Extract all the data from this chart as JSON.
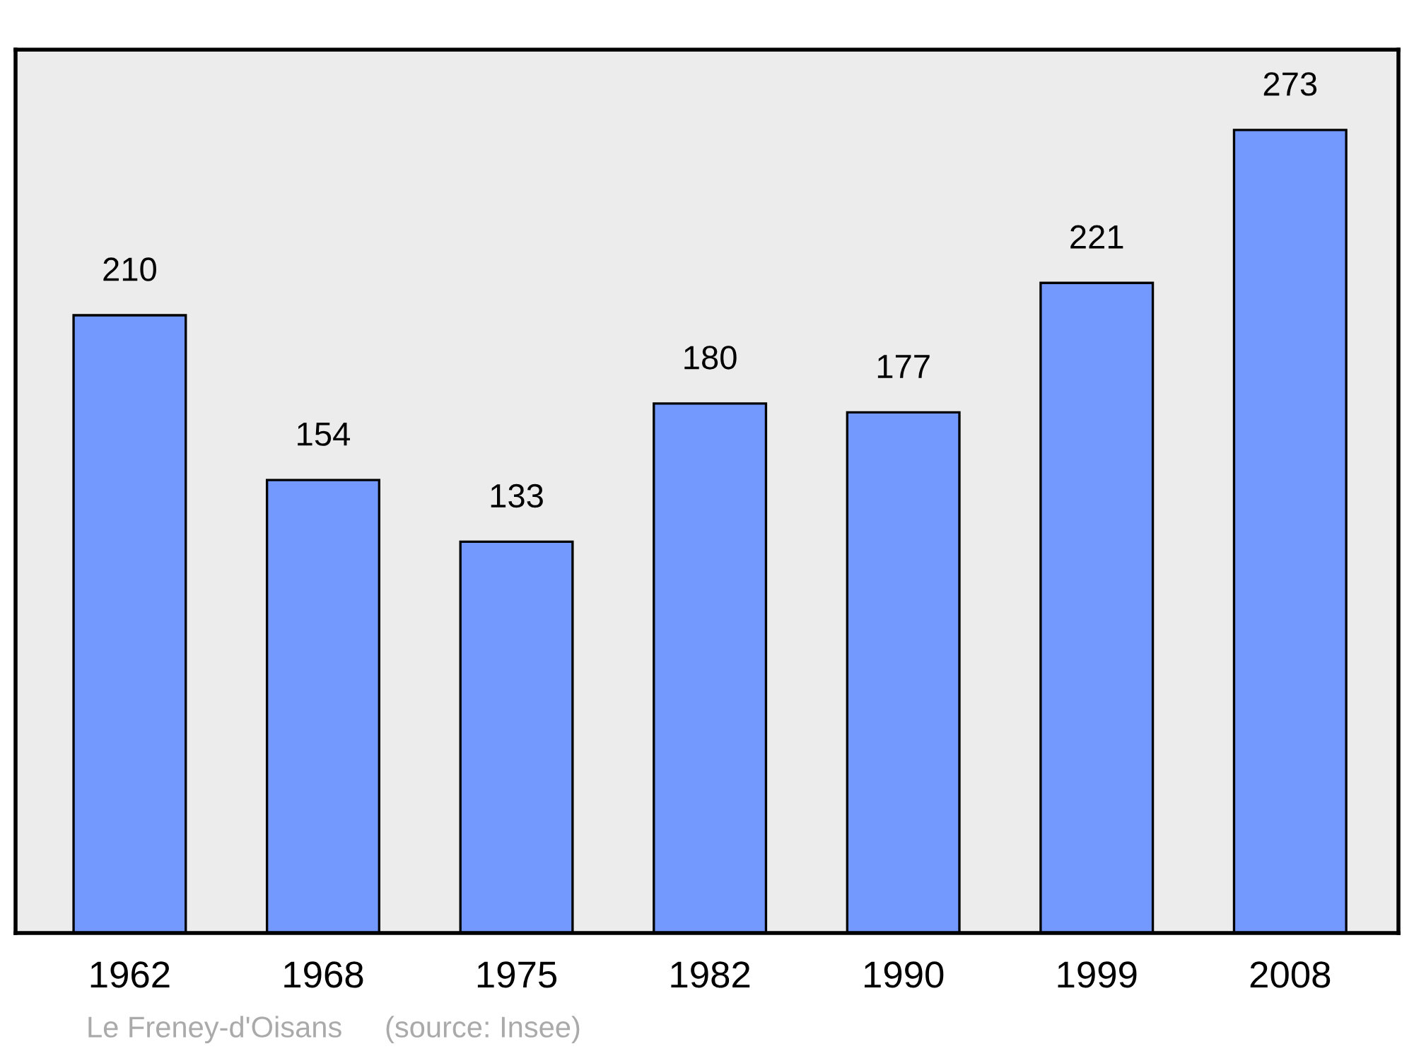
{
  "chart_data": {
    "type": "bar",
    "categories": [
      "1962",
      "1968",
      "1975",
      "1982",
      "1990",
      "1999",
      "2008"
    ],
    "values": [
      210,
      154,
      133,
      180,
      177,
      221,
      273
    ],
    "color": "#7399ff",
    "data_labels": true,
    "grid": false,
    "legend": false,
    "tick_labels": "x",
    "annotations": [
      "Le Freney-d'Oisans",
      "(source: Insee)"
    ]
  }
}
